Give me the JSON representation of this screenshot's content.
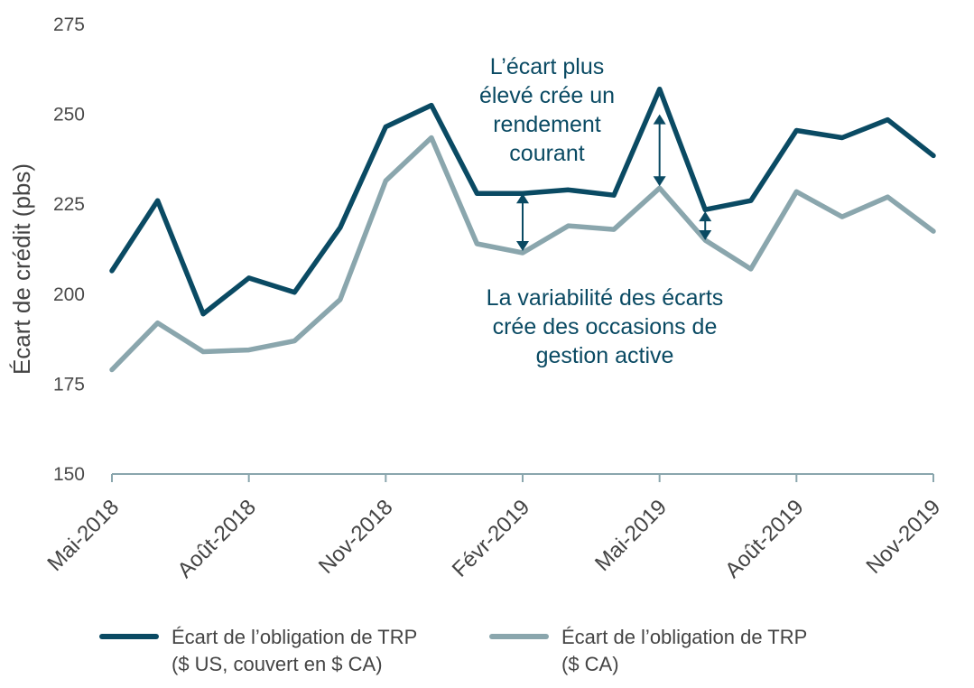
{
  "chart_data": {
    "type": "line",
    "title": "",
    "ylabel": "Écart de crédit (pbs)",
    "xlabel": "",
    "ylim": [
      150,
      275
    ],
    "yticks": [
      150,
      175,
      200,
      225,
      250,
      275
    ],
    "x_tick_labels": [
      {
        "index": 0,
        "label": "Mai-2018"
      },
      {
        "index": 3,
        "label": "Août-2018"
      },
      {
        "index": 6,
        "label": "Nov-2018"
      },
      {
        "index": 9,
        "label": "Févr-2019"
      },
      {
        "index": 12,
        "label": "Mai-2019"
      },
      {
        "index": 15,
        "label": "Août-2019"
      },
      {
        "index": 18,
        "label": "Nov-2019"
      }
    ],
    "x": [
      "2018-05",
      "2018-06",
      "2018-07",
      "2018-08",
      "2018-09",
      "2018-10",
      "2018-11",
      "2018-12",
      "2019-01",
      "2019-02",
      "2019-03",
      "2019-04",
      "2019-05",
      "2019-06",
      "2019-07",
      "2019-08",
      "2019-09",
      "2019-10",
      "2019-11"
    ],
    "series": [
      {
        "name": "Écart de l’obligation de TRP ($ US, couvert en $ CA)",
        "color": "#0a4a63",
        "values": [
          206.5,
          226,
          194.5,
          204.5,
          200.5,
          218.5,
          246.5,
          252.5,
          228,
          228,
          229,
          227.5,
          257,
          223.5,
          226,
          245.5,
          243.5,
          248.5,
          238.5
        ]
      },
      {
        "name": "Écart de l’obligation de TRP ($ CA)",
        "color": "#8aa6ad",
        "values": [
          179,
          192,
          184,
          184.5,
          187,
          198.5,
          231.5,
          243.5,
          214,
          211.5,
          219,
          218,
          229.5,
          215,
          207,
          228.5,
          221.5,
          227,
          217.5
        ]
      }
    ],
    "annotations": [
      {
        "text_lines": [
          "L’écart plus",
          "élevé crée un",
          "rendement",
          "courant"
        ]
      },
      {
        "text_lines": [
          "La variabilité des écarts",
          "crée des occasions de",
          "gestion active"
        ]
      }
    ],
    "arrows": [
      {
        "x_index": 9,
        "from": 228,
        "to": 212
      },
      {
        "x_index": 12,
        "from": 250,
        "to": 230
      },
      {
        "x_index": 13,
        "from": 223,
        "to": 215
      }
    ],
    "annotation_color": "#0a4a63",
    "legend_position": "bottom",
    "grid": false
  }
}
